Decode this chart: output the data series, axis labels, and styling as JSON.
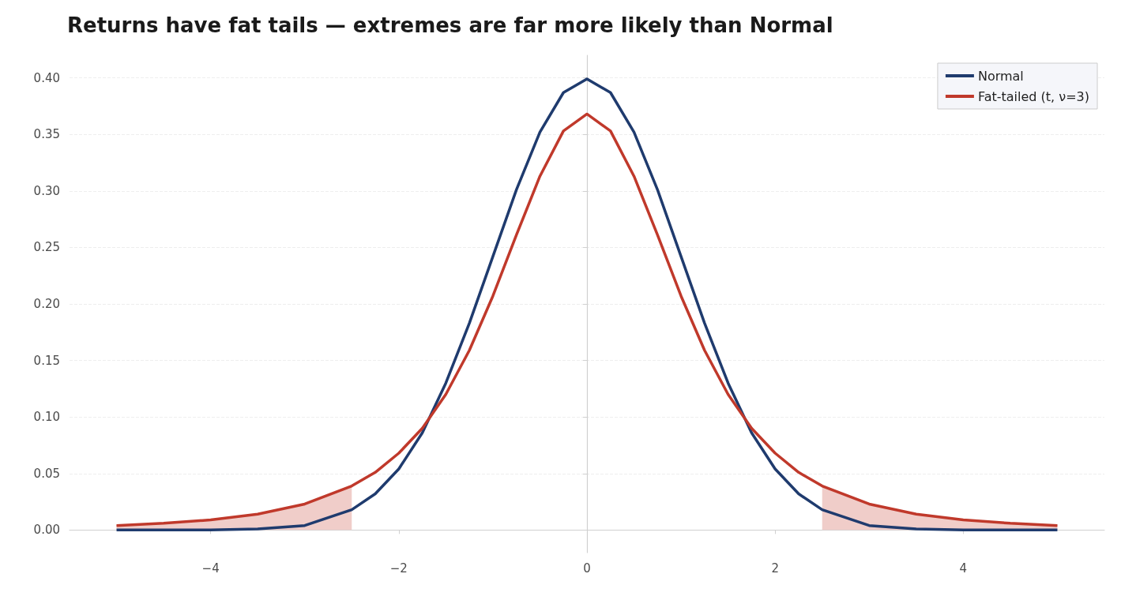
{
  "chart_data": {
    "type": "line",
    "title": "Returns have fat tails — extremes are far more likely than Normal",
    "xlim": [
      -5.5,
      5.5
    ],
    "ylim": [
      -0.02,
      0.42
    ],
    "xticks": [
      {
        "value": -4,
        "label": "−4"
      },
      {
        "value": -2,
        "label": "−2"
      },
      0,
      2,
      {
        "value": 4,
        "label": "4"
      }
    ],
    "yticks": [
      {
        "value": 0,
        "label": "0.00"
      },
      {
        "value": 0.05,
        "label": "0.05"
      },
      {
        "value": 0.1,
        "label": "0.10"
      },
      {
        "value": 0.15,
        "label": "0.15"
      },
      {
        "value": 0.2,
        "label": "0.20"
      },
      {
        "value": 0.25,
        "label": "0.25"
      },
      {
        "value": 0.3,
        "label": "0.30"
      },
      {
        "value": 0.35,
        "label": "0.35"
      },
      {
        "value": 0.4,
        "label": "0.40"
      }
    ],
    "grid": "y",
    "legend": "top right",
    "marker": "none",
    "series": [
      {
        "type": "area",
        "color": "#f0cdc9",
        "x": [
          -5,
          -4.5,
          -4,
          -3.5,
          -3,
          -2.5
        ],
        "values": [
          0.004,
          0.006,
          0.009,
          0.014,
          0.023,
          0.039
        ]
      },
      {
        "type": "area",
        "color": "#f0cdc9",
        "x": [
          2.5,
          3,
          3.5,
          4,
          4.5,
          5
        ],
        "values": [
          0.039,
          0.023,
          0.014,
          0.009,
          0.006,
          0.004
        ]
      },
      {
        "name": "Normal",
        "color": "#1f3b6e",
        "x": [
          -5,
          -4.5,
          -4,
          -3.5,
          -3,
          -2.5,
          -2.25,
          -2,
          -1.75,
          -1.5,
          -1.25,
          -1,
          -0.75,
          -0.5,
          -0.25,
          0,
          0.25,
          0.5,
          0.75,
          1,
          1.25,
          1.5,
          1.75,
          2,
          2.25,
          2.5,
          3,
          3.5,
          4,
          4.5,
          5
        ],
        "values": [
          0,
          0,
          0,
          0.001,
          0.004,
          0.018,
          0.032,
          0.054,
          0.086,
          0.13,
          0.183,
          0.242,
          0.301,
          0.352,
          0.387,
          0.399,
          0.387,
          0.352,
          0.301,
          0.242,
          0.183,
          0.13,
          0.086,
          0.054,
          0.032,
          0.018,
          0.004,
          0.001,
          0,
          0,
          0
        ]
      },
      {
        "name": "Fat-tailed (t, ν=3)",
        "color": "#c0392b",
        "x": [
          -5,
          -4.5,
          -4,
          -3.5,
          -3,
          -2.5,
          -2.25,
          -2,
          -1.75,
          -1.5,
          -1.25,
          -1,
          -0.75,
          -0.5,
          -0.25,
          0,
          0.25,
          0.5,
          0.75,
          1,
          1.25,
          1.5,
          1.75,
          2,
          2.25,
          2.5,
          3,
          3.5,
          4,
          4.5,
          5
        ],
        "values": [
          0.004,
          0.006,
          0.009,
          0.014,
          0.023,
          0.039,
          0.051,
          0.068,
          0.09,
          0.12,
          0.159,
          0.207,
          0.261,
          0.313,
          0.353,
          0.368,
          0.353,
          0.313,
          0.261,
          0.207,
          0.159,
          0.12,
          0.09,
          0.068,
          0.051,
          0.039,
          0.023,
          0.014,
          0.009,
          0.006,
          0.004
        ]
      }
    ]
  }
}
